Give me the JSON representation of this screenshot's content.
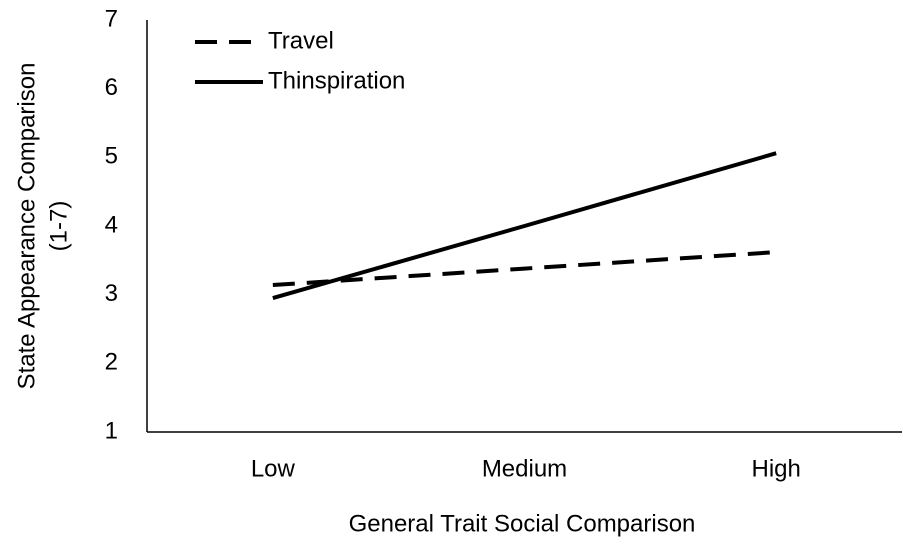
{
  "chart_data": {
    "type": "line",
    "categories": [
      "Low",
      "Medium",
      "High"
    ],
    "series": [
      {
        "name": "Travel",
        "color": "#000000",
        "dash": true,
        "values": [
          3.14,
          3.38,
          3.62
        ]
      },
      {
        "name": "Thinspiration",
        "color": "#000000",
        "dash": false,
        "values": [
          2.95,
          4.0,
          5.06
        ]
      }
    ],
    "xlabel": "General Trait Social Comparison",
    "ylabel": [
      "State Appearance Comparison",
      "(1-7)"
    ],
    "ylim": [
      1,
      7
    ],
    "yticks": [
      1,
      2,
      3,
      4,
      5,
      6,
      7
    ],
    "legend": "upper left",
    "grid": false
  }
}
